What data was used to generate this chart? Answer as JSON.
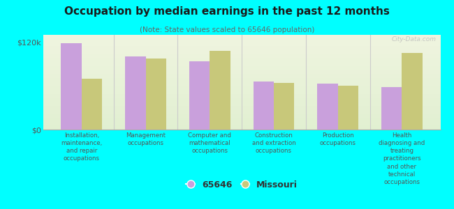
{
  "title": "Occupation by median earnings in the past 12 months",
  "subtitle": "(Note: State values scaled to 65646 population)",
  "background_color": "#00FFFF",
  "plot_bg_color_top": "#f0f5e0",
  "plot_bg_color_bottom": "#d8edc8",
  "categories": [
    "Installation,\nmaintenance,\nand repair\noccupations",
    "Management\noccupations",
    "Computer and\nmathematical\noccupations",
    "Construction\nand extraction\noccupations",
    "Production\noccupations",
    "Health\ndiagnosing and\ntreating\npractitioners\nand other\ntechnical\noccupations"
  ],
  "values_65646": [
    118000,
    100000,
    93000,
    66000,
    63000,
    58000
  ],
  "values_missouri": [
    70000,
    97000,
    108000,
    64000,
    60000,
    105000
  ],
  "color_65646": "#c9a0dc",
  "color_missouri": "#c8c87a",
  "ylim": [
    0,
    130000
  ],
  "yticks": [
    0,
    120000
  ],
  "ytick_labels": [
    "$0",
    "$120k"
  ],
  "legend_label_65646": "65646",
  "legend_label_missouri": "Missouri",
  "bar_width": 0.32,
  "watermark": "City-Data.com"
}
